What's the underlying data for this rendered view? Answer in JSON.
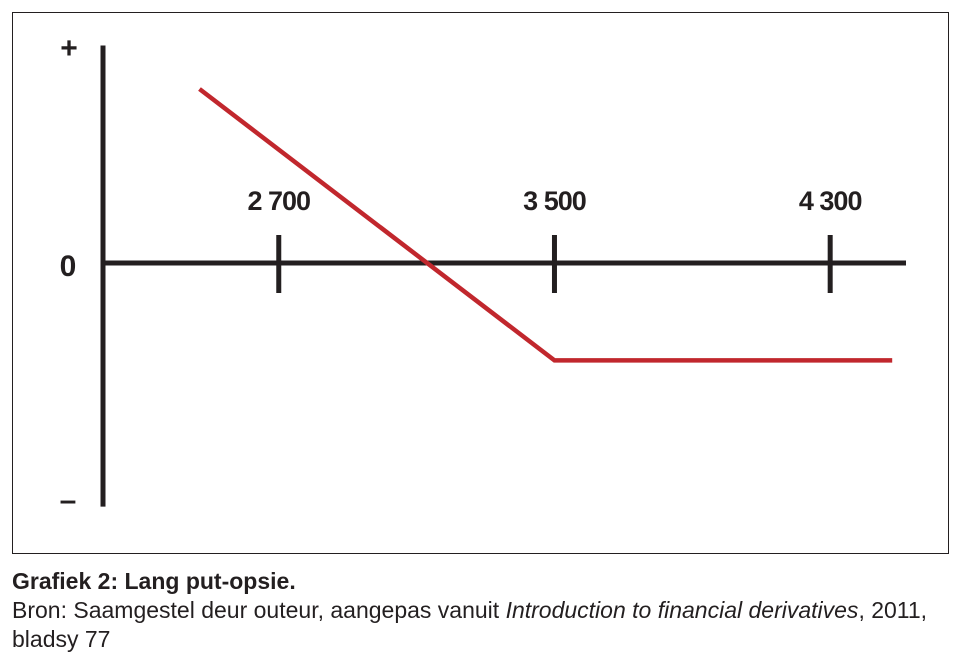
{
  "chart_data": {
    "type": "line",
    "x_ticks": [
      "2 700",
      "3 500",
      "4 300"
    ],
    "x_tick_values": [
      2700,
      3500,
      4300
    ],
    "y_labels": {
      "top": "+",
      "zero": "0",
      "bottom": "–"
    },
    "series": [
      {
        "color": "#c1272d",
        "points": [
          {
            "x": 2470,
            "y": 1.0
          },
          {
            "x": 3500,
            "y": -0.56
          },
          {
            "x": 4480,
            "y": -0.56
          }
        ]
      }
    ],
    "xlim": [
      2190,
      4520
    ],
    "ylim": [
      -1.4,
      1.25
    ],
    "axis_color": "#231f20",
    "legend": "none",
    "grid": false
  },
  "caption": {
    "title": "Grafiek 2: Lang put-opsie.",
    "source_prefix": "Bron: Saamgestel deur outeur, aangepas vanuit ",
    "source_italic": "Introduction to financial derivatives",
    "source_suffix": ", 2011, bladsy 77"
  }
}
